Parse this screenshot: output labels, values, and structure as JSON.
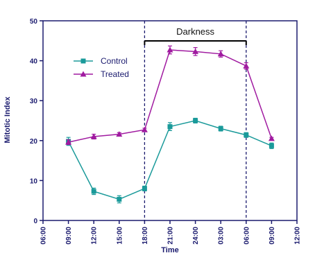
{
  "chart_data": {
    "type": "line",
    "xlabel": "Time",
    "ylabel": "Mitotic Index",
    "ylim": [
      0,
      50
    ],
    "yticks": [
      0,
      10,
      20,
      30,
      40,
      50
    ],
    "x_tick_labels": [
      "06:00",
      "09:00",
      "12:00",
      "15:00",
      "18:00",
      "21:00",
      "24:00",
      "03:00",
      "06:00",
      "09:00",
      "12:00"
    ],
    "x_points": [
      "09:00",
      "12:00",
      "15:00",
      "18:00",
      "21:00",
      "24:00",
      "03:00",
      "06:00",
      "09:00"
    ],
    "series": [
      {
        "name": "Control",
        "color": "#1a9a9a",
        "marker": "square",
        "values": [
          19.8,
          7.3,
          5.3,
          8.0,
          23.5,
          25.0,
          23.0,
          21.4,
          18.7
        ],
        "errors": [
          1.0,
          0.8,
          0.9,
          0.6,
          1.0,
          0.6,
          0.6,
          0.6,
          0.7
        ]
      },
      {
        "name": "Treated",
        "color": "#a01aa0",
        "marker": "triangle",
        "values": [
          19.6,
          21.0,
          21.6,
          22.7,
          42.7,
          42.3,
          41.7,
          38.7,
          20.5
        ],
        "errors": [
          0.6,
          0.6,
          0.4,
          0.4,
          1.0,
          1.0,
          0.8,
          0.8,
          0.3
        ]
      }
    ],
    "annotation": {
      "label": "Darkness",
      "start": "18:00",
      "end": "06:00"
    },
    "legend_position": "upper-left",
    "grid": false
  }
}
